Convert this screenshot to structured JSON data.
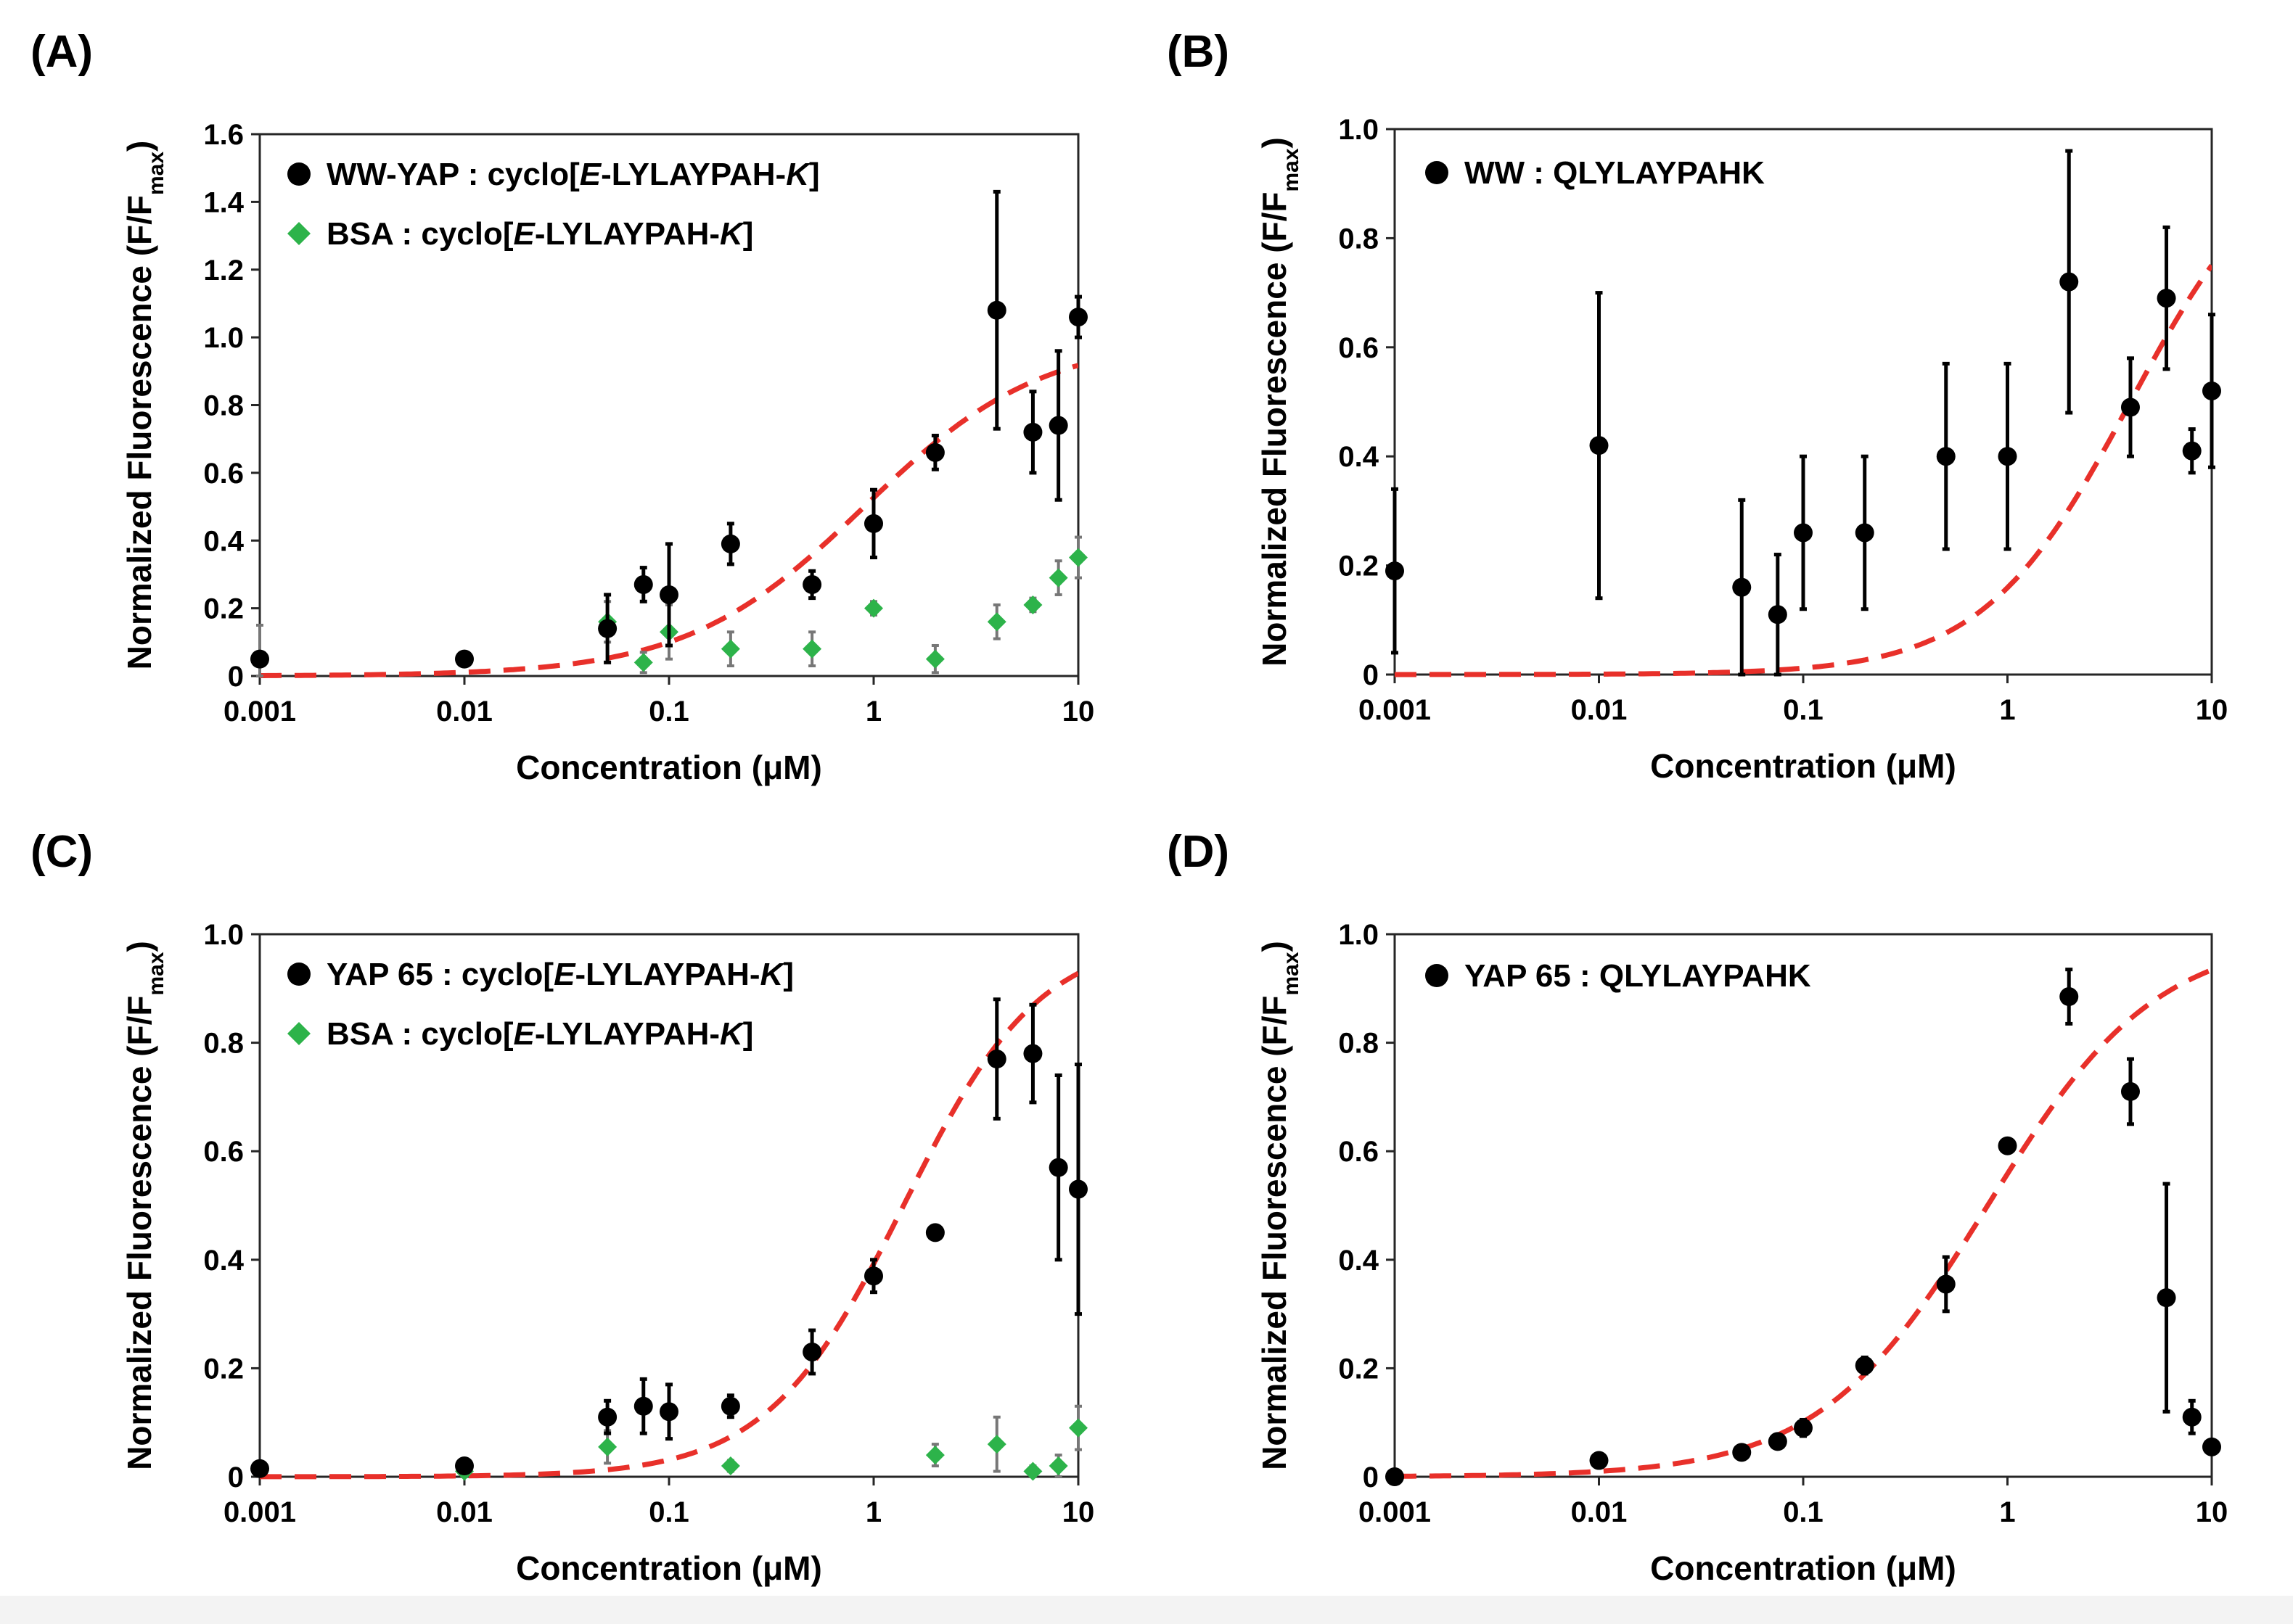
{
  "colors": {
    "series1": "#000000",
    "series2": "#2db34a",
    "fit": "#e8302a",
    "frame": "#262626"
  },
  "chart_data": [
    {
      "panel": "(A)",
      "type": "scatter",
      "xscale": "log",
      "xlim": [
        0.001,
        10
      ],
      "ylim": [
        0,
        1.6
      ],
      "xticks": [
        "0.001",
        "0.01",
        "0.1",
        "1",
        "10"
      ],
      "yticks": [
        "0",
        "0.2",
        "0.4",
        "0.6",
        "0.8",
        "1.0",
        "1.2",
        "1.4",
        "1.6"
      ],
      "xlabel": "Concentration (μM)",
      "ylabel": "Normalized Fluorescence (F/F",
      "ylabel_sub": "max",
      "ylabel_end": ")",
      "legend_position": "top-left",
      "series": [
        {
          "name": "WW-YAP : cyclo[E-LYLAYPAH-K]",
          "legend_pre": "WW-YAP : cyclo[",
          "legend_i1": "E",
          "legend_mid": "-LYLAYPAH-",
          "legend_i2": "K",
          "legend_post": "]",
          "marker": "circle",
          "color": "#000000",
          "x": [
            0.001,
            0.01,
            0.05,
            0.075,
            0.1,
            0.2,
            0.5,
            1,
            2,
            4,
            6,
            8,
            10
          ],
          "y": [
            0.05,
            0.05,
            0.14,
            0.27,
            0.24,
            0.39,
            0.27,
            0.45,
            0.66,
            1.08,
            0.72,
            0.74,
            1.06
          ],
          "err": [
            0.02,
            0.02,
            0.1,
            0.05,
            0.15,
            0.06,
            0.04,
            0.1,
            0.05,
            0.35,
            0.12,
            0.22,
            0.06
          ]
        },
        {
          "name": "BSA : cyclo[E-LYLAYPAH-K]",
          "legend_pre": "BSA : cyclo[",
          "legend_i1": "E",
          "legend_mid": "-LYLAYPAH-",
          "legend_i2": "K",
          "legend_post": "]",
          "marker": "diamond",
          "color": "#2db34a",
          "x": [
            0.001,
            0.01,
            0.05,
            0.075,
            0.1,
            0.2,
            0.5,
            1,
            2,
            4,
            6,
            8,
            10
          ],
          "y": [
            0.05,
            0.05,
            0.16,
            0.04,
            0.13,
            0.08,
            0.08,
            0.2,
            0.05,
            0.16,
            0.21,
            0.29,
            0.35
          ],
          "err": [
            0.1,
            0.02,
            0.06,
            0.03,
            0.08,
            0.05,
            0.05,
            0.02,
            0.04,
            0.05,
            0.02,
            0.05,
            0.06
          ]
        }
      ],
      "fit": {
        "ec50": 0.9,
        "hill": 1,
        "top": 1.0
      }
    },
    {
      "panel": "(B)",
      "type": "scatter",
      "xscale": "log",
      "xlim": [
        0.001,
        10
      ],
      "ylim": [
        0,
        1.0
      ],
      "xticks": [
        "0.001",
        "0.01",
        "0.1",
        "1",
        "10"
      ],
      "yticks": [
        "0",
        "0.2",
        "0.4",
        "0.6",
        "0.8",
        "1.0"
      ],
      "xlabel": "Concentration (μM)",
      "ylabel": "Normalized Fluorescence (F/F",
      "ylabel_sub": "max",
      "ylabel_end": ")",
      "legend_position": "top-left",
      "series": [
        {
          "name": "WW : QLYLAYPAHK",
          "legend_pre": "WW : QLYLAYPAHK",
          "legend_i1": "",
          "legend_mid": "",
          "legend_i2": "",
          "legend_post": "",
          "marker": "circle",
          "color": "#000000",
          "x": [
            0.001,
            0.01,
            0.05,
            0.075,
            0.1,
            0.2,
            0.5,
            1,
            2,
            4,
            6,
            8,
            10
          ],
          "y": [
            0.19,
            0.42,
            0.16,
            0.11,
            0.26,
            0.26,
            0.4,
            0.4,
            0.72,
            0.49,
            0.69,
            0.41,
            0.52
          ],
          "err": [
            0.15,
            0.28,
            0.16,
            0.11,
            0.14,
            0.14,
            0.17,
            0.17,
            0.24,
            0.09,
            0.13,
            0.04,
            0.14
          ]
        }
      ],
      "fit": {
        "ec50": 4.0,
        "hill": 1.2,
        "top": 1.0
      }
    },
    {
      "panel": "(C)",
      "type": "scatter",
      "xscale": "log",
      "xlim": [
        0.001,
        10
      ],
      "ylim": [
        0,
        1.0
      ],
      "xticks": [
        "0.001",
        "0.01",
        "0.1",
        "1",
        "10"
      ],
      "yticks": [
        "0",
        "0.2",
        "0.4",
        "0.6",
        "0.8",
        "1.0"
      ],
      "xlabel": "Concentration (μM)",
      "ylabel": "Normalized Fluorescence (F/F",
      "ylabel_sub": "max",
      "ylabel_end": ")",
      "legend_position": "top-left",
      "series": [
        {
          "name": "YAP 65 : cyclo[E-LYLAYPAH-K]",
          "legend_pre": "YAP 65 : cyclo[",
          "legend_i1": "E",
          "legend_mid": "-LYLAYPAH-",
          "legend_i2": "K",
          "legend_post": "]",
          "marker": "circle",
          "color": "#000000",
          "x": [
            0.001,
            0.01,
            0.05,
            0.075,
            0.1,
            0.2,
            0.5,
            1,
            2,
            4,
            6,
            8,
            10
          ],
          "y": [
            0.015,
            0.02,
            0.11,
            0.13,
            0.12,
            0.13,
            0.23,
            0.37,
            0.45,
            0.77,
            0.78,
            0.57,
            0.53
          ],
          "err": [
            0.005,
            0.01,
            0.03,
            0.05,
            0.05,
            0.02,
            0.04,
            0.03,
            0.01,
            0.11,
            0.09,
            0.17,
            0.23
          ]
        },
        {
          "name": "BSA : cyclo[E-LYLAYPAH-K]",
          "legend_pre": "BSA : cyclo[",
          "legend_i1": "E",
          "legend_mid": "-LYLAYPAH-",
          "legend_i2": "K",
          "legend_post": "]",
          "marker": "diamond",
          "color": "#2db34a",
          "x": [
            0.01,
            0.05,
            0.2,
            2,
            4,
            6,
            8,
            10
          ],
          "y": [
            0.01,
            0.055,
            0.02,
            0.04,
            0.06,
            0.01,
            0.02,
            0.09
          ],
          "err": [
            0.01,
            0.03,
            0.01,
            0.02,
            0.05,
            0.01,
            0.02,
            0.04
          ]
        }
      ],
      "fit": {
        "ec50": 1.4,
        "hill": 1.3,
        "top": 1.0
      }
    },
    {
      "panel": "(D)",
      "type": "scatter",
      "xscale": "log",
      "xlim": [
        0.001,
        10
      ],
      "ylim": [
        0,
        1.0
      ],
      "xticks": [
        "0.001",
        "0.01",
        "0.1",
        "1",
        "10"
      ],
      "yticks": [
        "0",
        "0.2",
        "0.4",
        "0.6",
        "0.8",
        "1.0"
      ],
      "xlabel": "Concentration (μM)",
      "ylabel": "Normalized Fluorescence (F/F",
      "ylabel_sub": "max",
      "ylabel_end": ")",
      "legend_position": "top-left",
      "series": [
        {
          "name": "YAP 65 : QLYLAYPAHK",
          "legend_pre": "YAP 65 : QLYLAYPAHK",
          "legend_i1": "",
          "legend_mid": "",
          "legend_i2": "",
          "legend_post": "",
          "marker": "circle",
          "color": "#000000",
          "x": [
            0.001,
            0.01,
            0.05,
            0.075,
            0.1,
            0.2,
            0.5,
            1,
            2,
            4,
            6,
            8,
            10
          ],
          "y": [
            0.0,
            0.03,
            0.045,
            0.065,
            0.09,
            0.205,
            0.355,
            0.61,
            0.885,
            0.71,
            0.33,
            0.11,
            0.055
          ],
          "err": [
            0.005,
            0.01,
            0.01,
            0.01,
            0.015,
            0.015,
            0.05,
            0.01,
            0.05,
            0.06,
            0.21,
            0.03,
            0.01
          ]
        }
      ],
      "fit": {
        "ec50": 0.8,
        "hill": 1.05,
        "top": 1.0
      }
    }
  ]
}
